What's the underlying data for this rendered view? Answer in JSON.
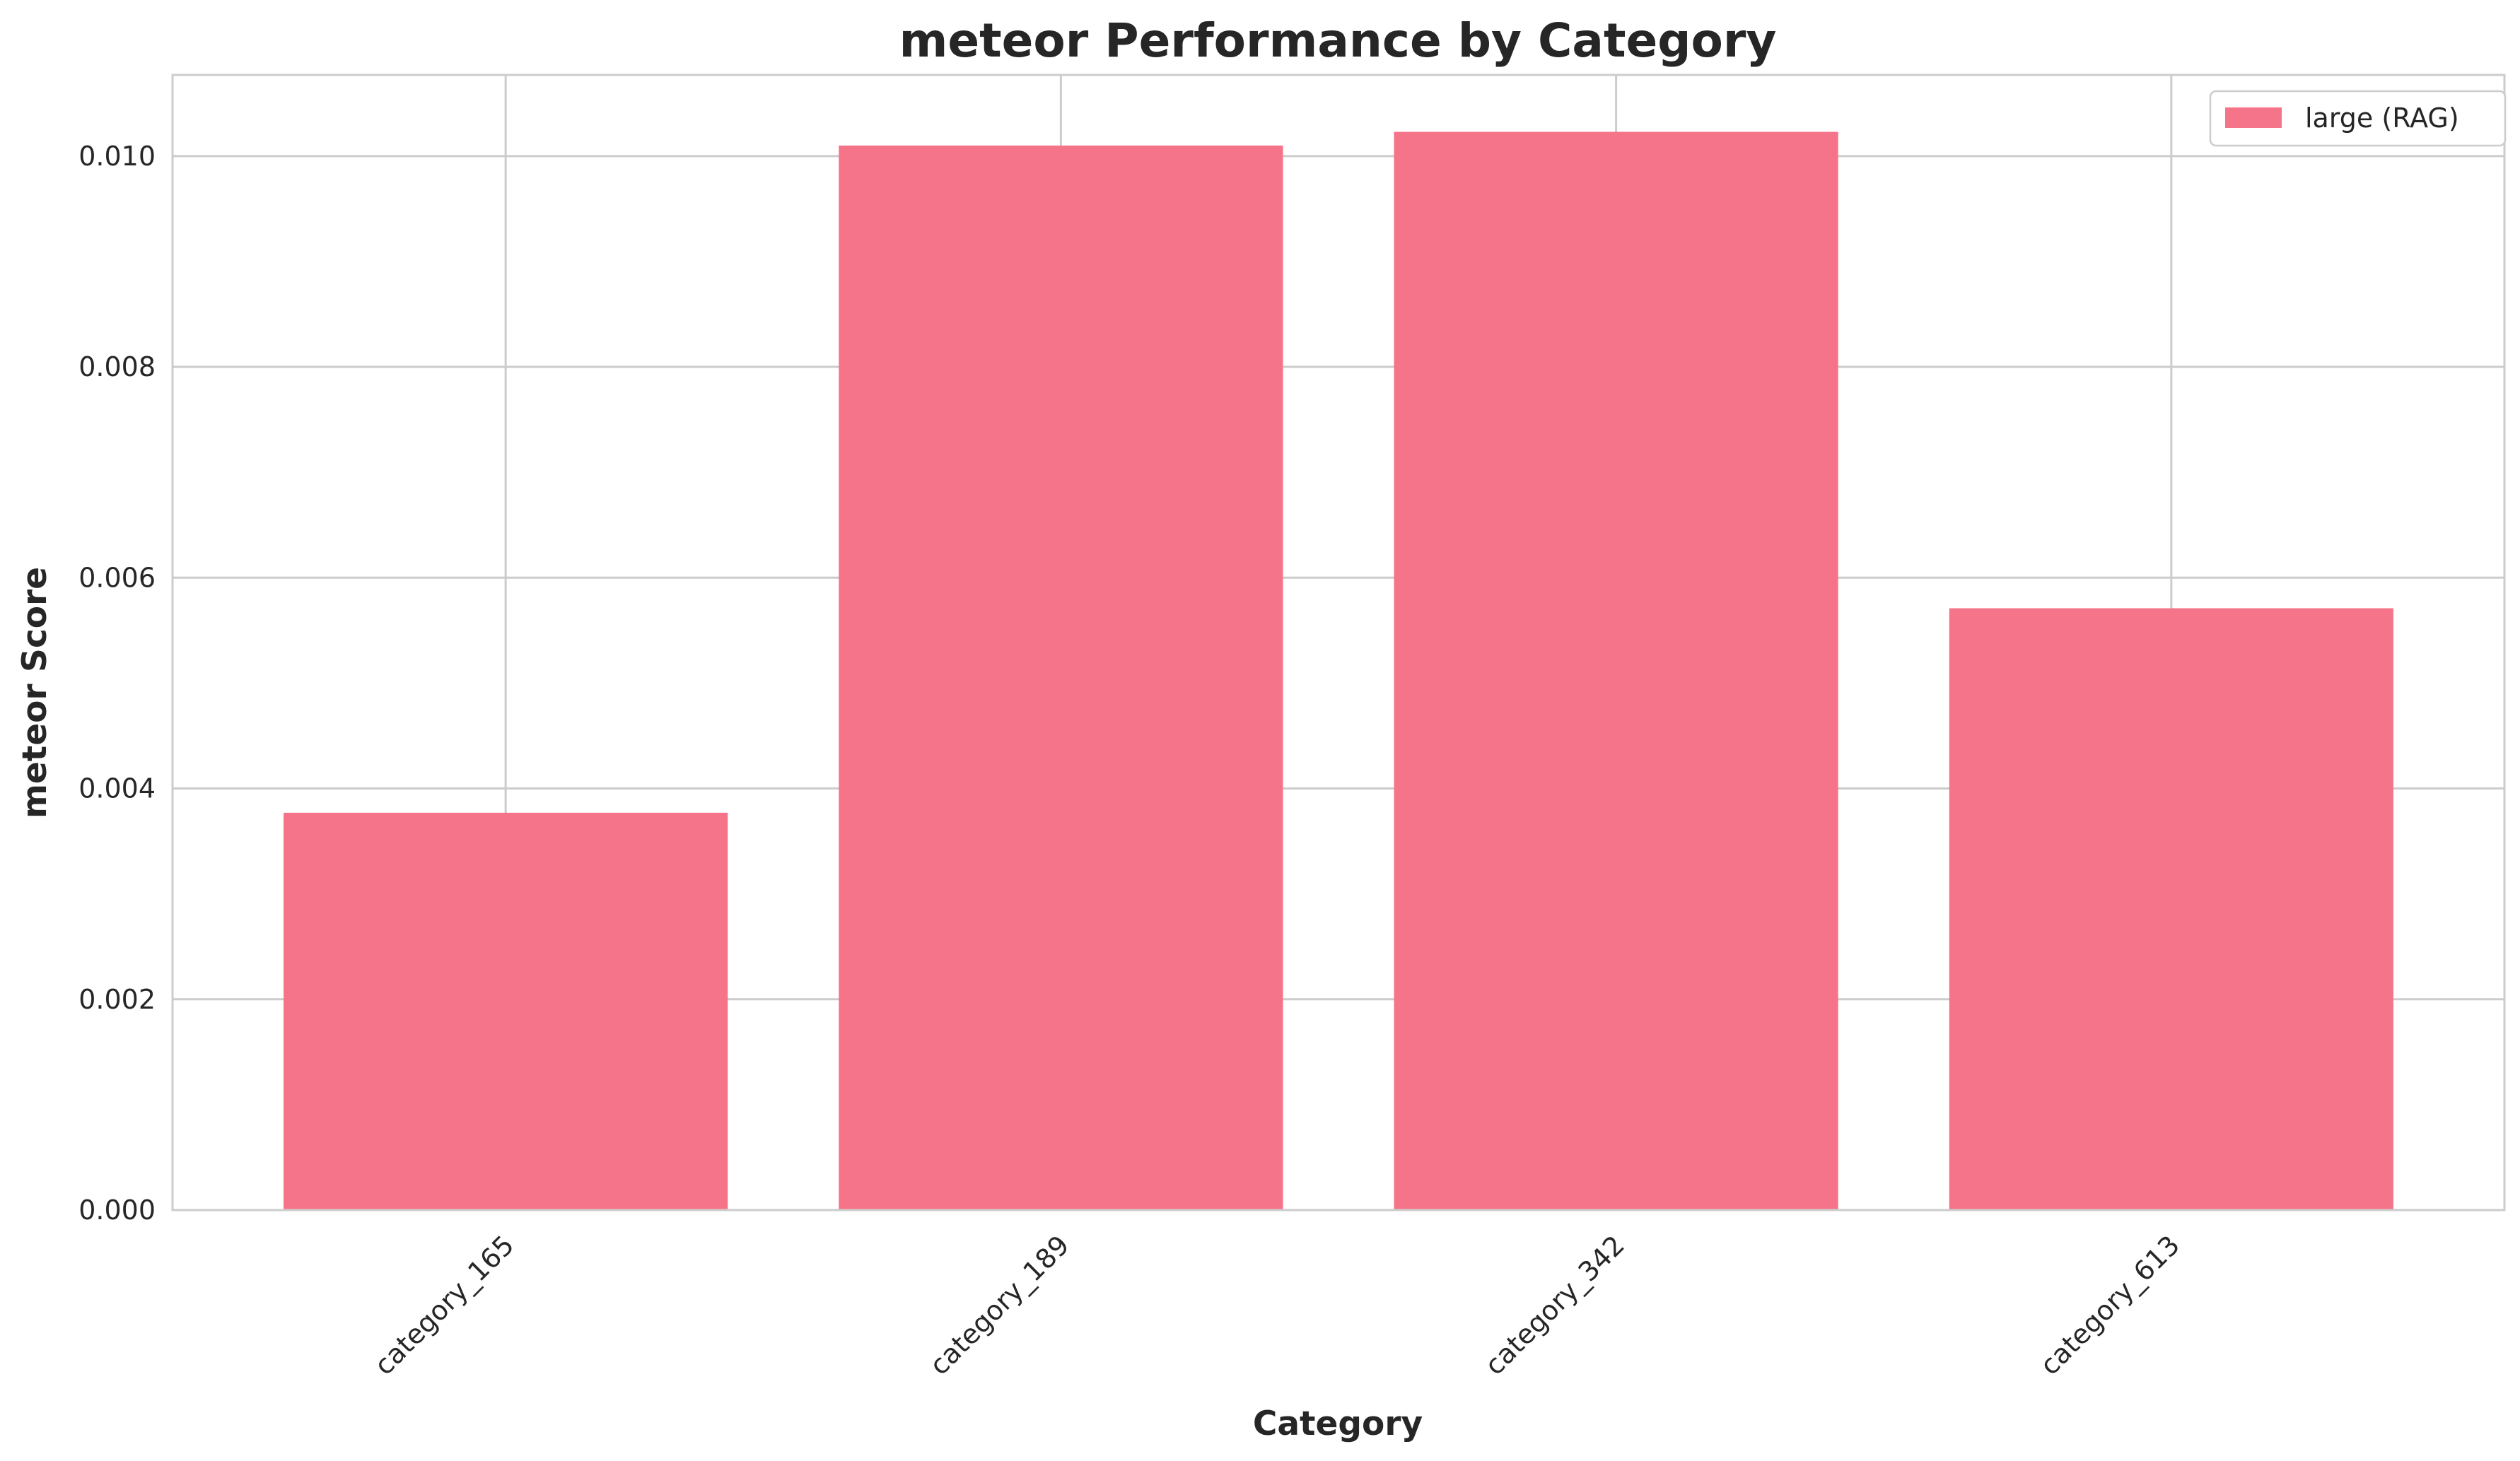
{
  "chart_data": {
    "type": "bar",
    "title": "meteor Performance by Category",
    "xlabel": "Category",
    "ylabel": "meteor Score",
    "categories": [
      "category_165",
      "category_189",
      "category_342",
      "category_613"
    ],
    "series": [
      {
        "name": "large (RAG)",
        "color": "#f67489",
        "values": [
          0.00377,
          0.0101,
          0.01023,
          0.00571
        ]
      }
    ],
    "ylim": [
      0,
      0.01077
    ],
    "yticks": [
      0.0,
      0.002,
      0.004,
      0.006,
      0.008,
      0.01
    ],
    "ytick_labels": [
      "0.000",
      "0.002",
      "0.004",
      "0.006",
      "0.008",
      "0.010"
    ],
    "grid": true,
    "legend_position": "top-right",
    "colors": {
      "bar": "#f67489",
      "grid": "#cccccc",
      "text": "#262626",
      "background": "#ffffff"
    }
  }
}
